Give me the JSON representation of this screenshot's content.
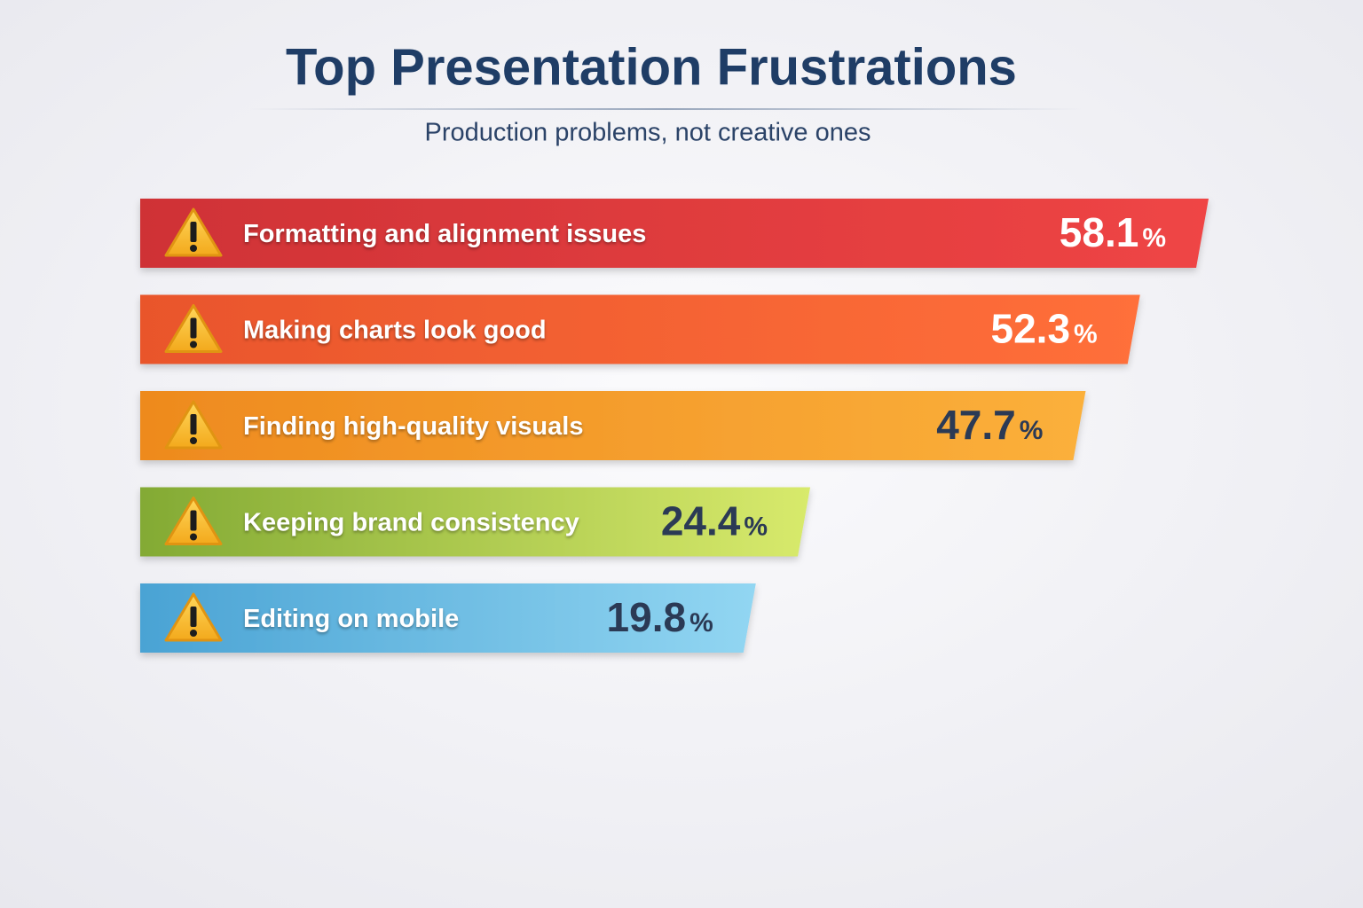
{
  "chart_data": {
    "type": "bar",
    "orientation": "horizontal",
    "title": "Top Presentation Frustrations",
    "subtitle": "Production problems, not creative ones",
    "categories": [
      "Formatting and alignment issues",
      "Making charts look good",
      "Finding high-quality visuals",
      "Keeping brand consistency",
      "Editing on mobile"
    ],
    "values": [
      58.1,
      52.3,
      47.7,
      24.4,
      19.8
    ],
    "value_labels": [
      "58.1%",
      "52.3%",
      "47.7%",
      "24.4%",
      "19.8%"
    ],
    "colors": [
      [
        "#cf3236",
        "#ef4545"
      ],
      [
        "#e9552c",
        "#ff6f3a"
      ],
      [
        "#ee8a1e",
        "#fbb03b"
      ],
      [
        "#83aa34",
        "#d8ea6c"
      ],
      [
        "#4aa3d4",
        "#92d6f2"
      ]
    ],
    "value_label_colors": [
      "#ffffff",
      "#ffffff",
      "#2b3a55",
      "#2b3a55",
      "#2b3a55"
    ]
  }
}
